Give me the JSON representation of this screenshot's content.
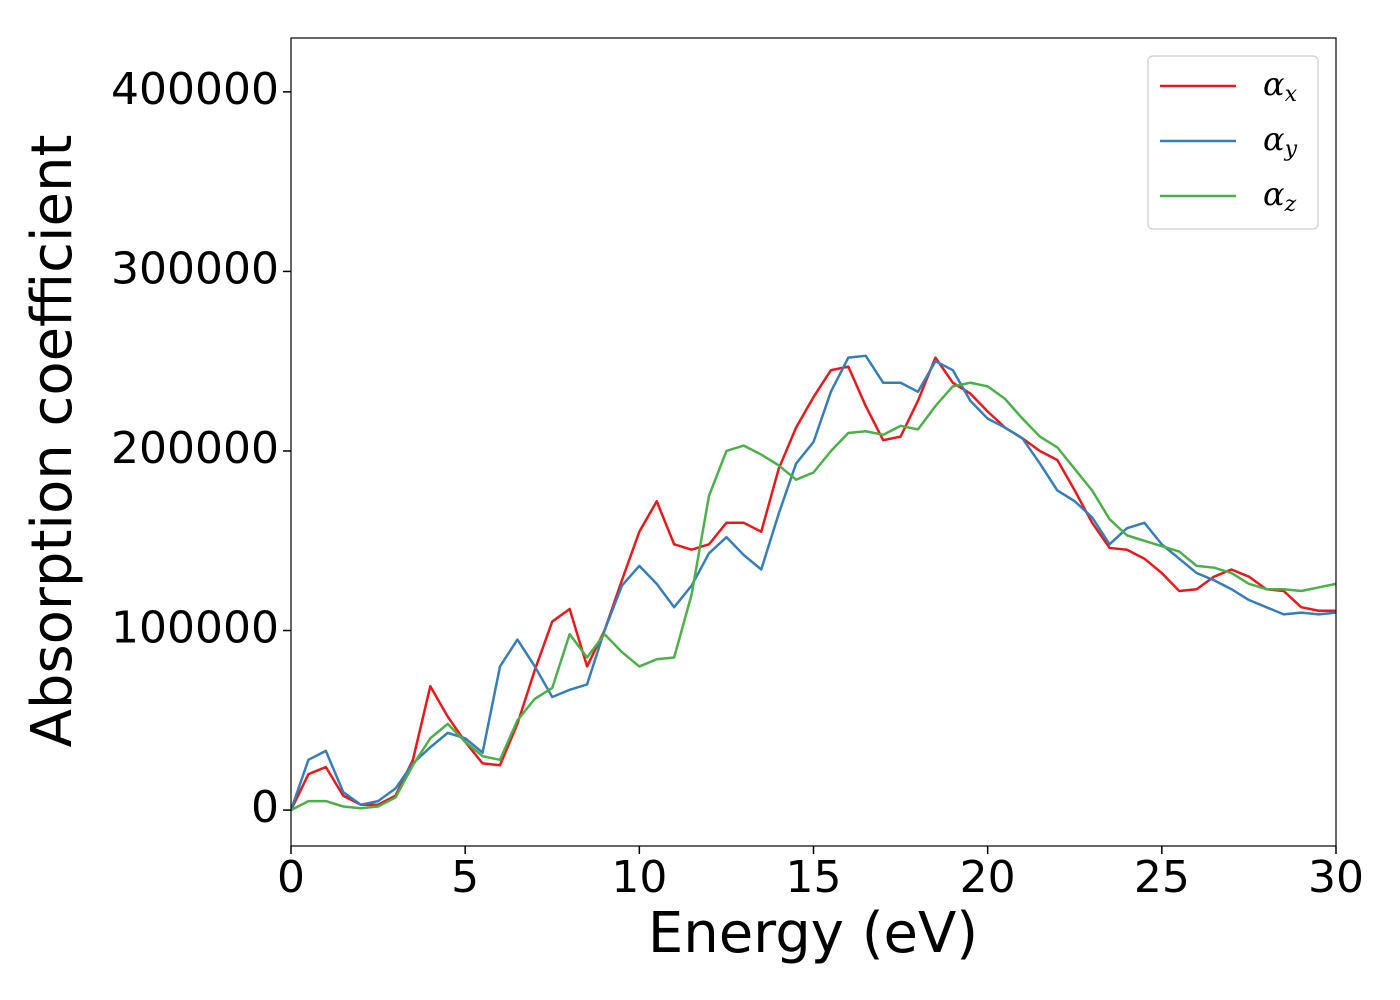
{
  "chart_data": {
    "type": "line",
    "xlabel": "Energy (eV)",
    "ylabel": "Absorption coefficient",
    "x": [
      0,
      0.5,
      1,
      1.5,
      2,
      2.5,
      3,
      3.5,
      4,
      4.5,
      5,
      5.5,
      6,
      6.5,
      7,
      7.5,
      8,
      8.5,
      9,
      9.5,
      10,
      10.5,
      11,
      11.5,
      12,
      12.5,
      13,
      13.5,
      14,
      14.5,
      15,
      15.5,
      16,
      16.5,
      17,
      17.5,
      18,
      18.5,
      19,
      19.5,
      20,
      20.5,
      21,
      21.5,
      22,
      22.5,
      23,
      23.5,
      24,
      24.5,
      25,
      25.5,
      26,
      26.5,
      27,
      27.5,
      28,
      28.5,
      29,
      29.5,
      30
    ],
    "series": [
      {
        "name": "α_x",
        "color": "#e41a1c",
        "values": [
          0,
          20000,
          24000,
          8000,
          3000,
          3000,
          8000,
          28000,
          69000,
          52000,
          38000,
          26000,
          25000,
          48000,
          78000,
          105000,
          112000,
          80000,
          100000,
          128000,
          155000,
          172000,
          148000,
          145000,
          148000,
          160000,
          160000,
          155000,
          190000,
          213000,
          230000,
          245000,
          247000,
          225000,
          206000,
          208000,
          228000,
          252000,
          238000,
          232000,
          222000,
          213000,
          207000,
          200000,
          195000,
          178000,
          160000,
          146000,
          145000,
          140000,
          132000,
          122000,
          123000,
          130000,
          134000,
          130000,
          123000,
          122000,
          113000,
          111000,
          111000
        ]
      },
      {
        "name": "α_y",
        "color": "#377eb8",
        "values": [
          0,
          28000,
          33000,
          10000,
          3000,
          5000,
          12000,
          26000,
          35000,
          43000,
          40000,
          32000,
          80000,
          95000,
          80000,
          63000,
          67000,
          70000,
          100000,
          125000,
          136000,
          126000,
          113000,
          125000,
          143000,
          152000,
          142000,
          134000,
          165000,
          193000,
          205000,
          233000,
          252000,
          253000,
          238000,
          238000,
          233000,
          250000,
          245000,
          228000,
          218000,
          213000,
          207000,
          193000,
          178000,
          172000,
          163000,
          148000,
          157000,
          160000,
          148000,
          140000,
          132000,
          128000,
          123000,
          117000,
          113000,
          109000,
          110000,
          109000,
          110000
        ]
      },
      {
        "name": "α_z",
        "color": "#4daf4a",
        "values": [
          0,
          5000,
          5000,
          2000,
          1000,
          2000,
          7000,
          25000,
          40000,
          48000,
          38000,
          30000,
          28000,
          50000,
          62000,
          68000,
          98000,
          85000,
          98000,
          88000,
          80000,
          84000,
          85000,
          120000,
          175000,
          200000,
          203000,
          198000,
          192000,
          184000,
          188000,
          200000,
          210000,
          211000,
          209000,
          214000,
          212000,
          225000,
          236000,
          238000,
          236000,
          229000,
          218000,
          208000,
          202000,
          190000,
          178000,
          162000,
          153000,
          150000,
          147000,
          144000,
          136000,
          135000,
          132000,
          126000,
          123000,
          123000,
          122000,
          124000,
          126000
        ]
      }
    ],
    "xlim": [
      0,
      30
    ],
    "ylim": [
      -20000,
      430000
    ],
    "xticks": [
      0,
      5,
      10,
      15,
      20,
      25,
      30
    ],
    "yticks": [
      0,
      100000,
      200000,
      300000,
      400000
    ],
    "legend": "upper right"
  }
}
